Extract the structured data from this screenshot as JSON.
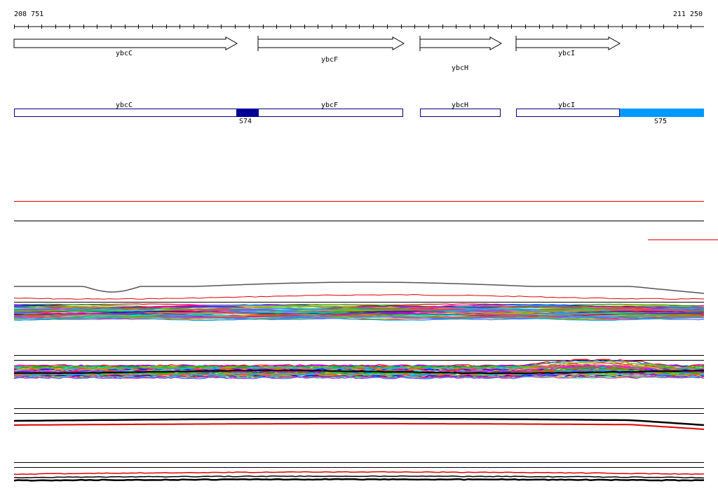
{
  "coordinates": {
    "start": "208 751",
    "end": "211 250"
  },
  "genes": [
    {
      "name": "ybcC"
    },
    {
      "name": "ybcF"
    },
    {
      "name": "ybcH"
    },
    {
      "name": "ybcI"
    }
  ],
  "transcripts": [
    {
      "name": "ybcC"
    },
    {
      "name": "ybcF"
    },
    {
      "name": "ybcH"
    },
    {
      "name": "ybcI"
    }
  ],
  "segments": [
    {
      "name": "S74",
      "color": "#000099"
    },
    {
      "name": "S75",
      "color": "#0099ff"
    }
  ],
  "colors": {
    "outline": "#000080",
    "red": "#e00000",
    "black": "#000000"
  }
}
